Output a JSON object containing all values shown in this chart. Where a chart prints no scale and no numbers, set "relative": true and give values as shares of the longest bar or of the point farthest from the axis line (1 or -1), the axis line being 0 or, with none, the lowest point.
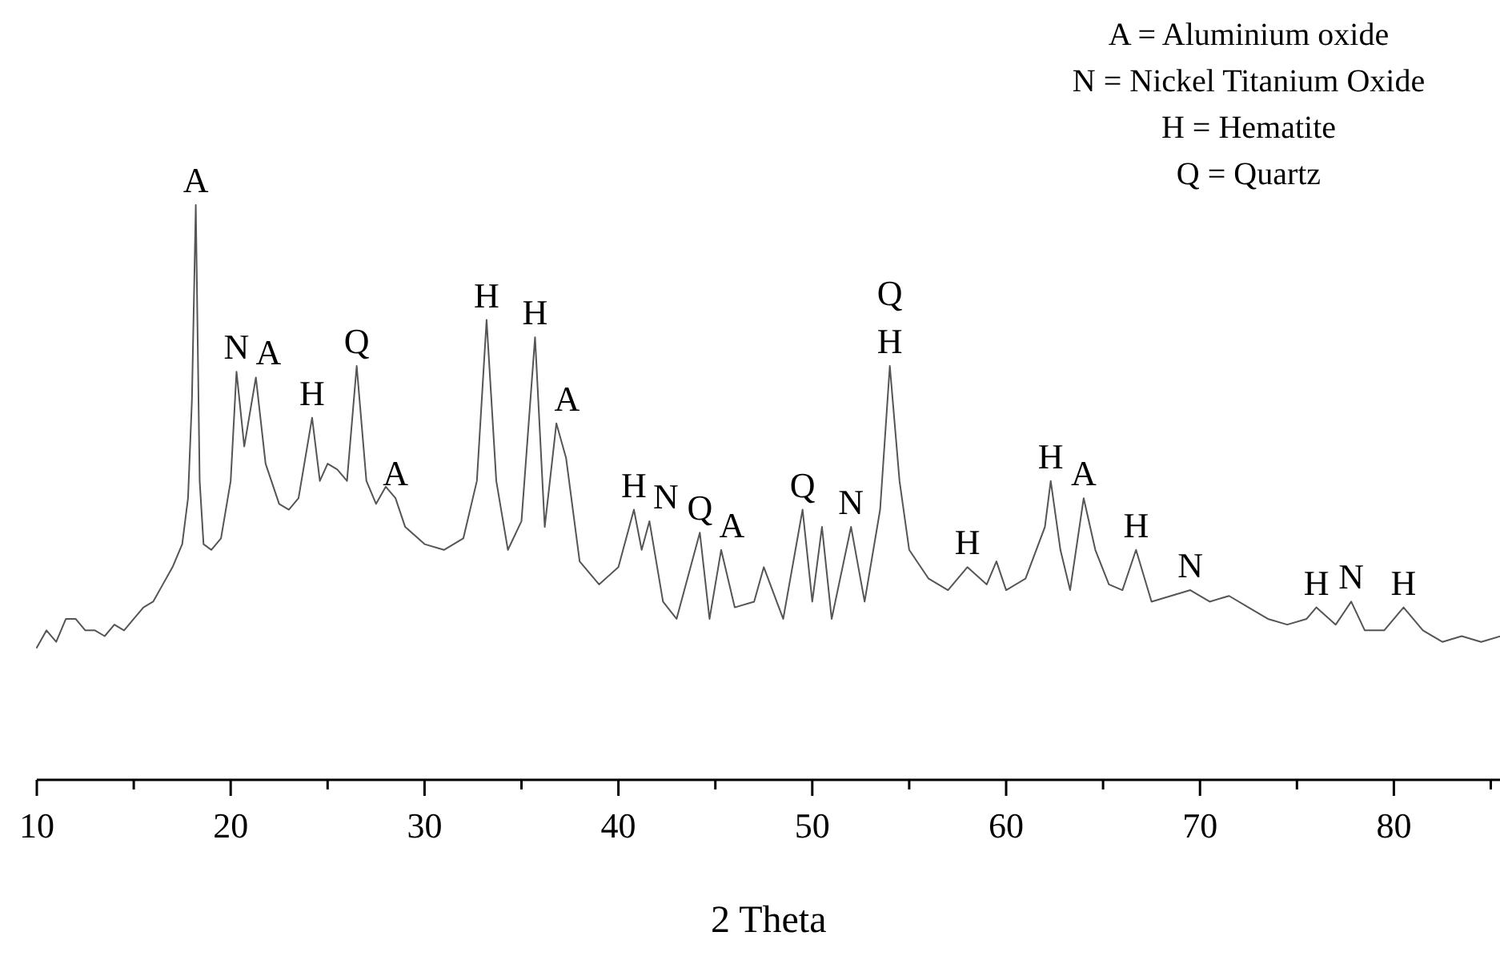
{
  "chart_data": {
    "type": "line",
    "relative": true,
    "xlabel": "2 Theta",
    "xlim": [
      10,
      85.5
    ],
    "xticks": [
      10,
      {
        "value": 15,
        "label": null
      },
      20,
      {
        "value": 25,
        "label": null
      },
      30,
      {
        "value": 35,
        "label": null
      },
      40,
      {
        "value": 45,
        "label": null
      },
      50,
      {
        "value": 55,
        "label": null
      },
      60,
      {
        "value": 65,
        "label": null
      },
      70,
      {
        "value": 75,
        "label": null
      },
      80,
      {
        "value": 85,
        "label": null
      }
    ],
    "x": [
      10,
      10.5,
      11,
      11.5,
      12,
      12.5,
      13,
      13.5,
      14,
      14.5,
      15,
      15.5,
      16,
      16.5,
      17,
      17.5,
      17.8,
      18,
      18.2,
      18.4,
      18.6,
      19,
      19.5,
      20,
      20.3,
      20.7,
      21.3,
      21.8,
      22.5,
      23,
      23.5,
      24.2,
      24.6,
      25,
      25.5,
      26,
      26.5,
      27,
      27.5,
      28,
      28.5,
      29,
      30,
      31,
      32,
      32.7,
      33.2,
      33.7,
      34.3,
      35,
      35.7,
      36.2,
      36.8,
      37.3,
      38,
      39,
      40,
      40.8,
      41.2,
      41.6,
      42.3,
      43,
      44.2,
      44.7,
      45.3,
      46,
      47,
      47.5,
      48.5,
      49.5,
      50,
      50.5,
      51,
      52,
      52.7,
      53.5,
      54,
      54.5,
      55,
      56,
      57,
      58,
      59,
      59.5,
      60,
      61,
      62,
      62.3,
      62.8,
      63.3,
      64,
      64.6,
      65.3,
      66,
      66.7,
      67.5,
      68.5,
      69.5,
      70.5,
      71.5,
      72.5,
      73.5,
      74.5,
      75.5,
      76,
      77,
      77.8,
      78.5,
      79.5,
      80.5,
      81.5,
      82.5,
      83.5,
      84.5,
      85.5
    ],
    "series": [
      {
        "color": "#555555",
        "values": [
          0.23,
          0.26,
          0.24,
          0.28,
          0.28,
          0.26,
          0.26,
          0.25,
          0.27,
          0.26,
          0.28,
          0.3,
          0.31,
          0.34,
          0.37,
          0.41,
          0.49,
          0.66,
          1,
          0.52,
          0.41,
          0.4,
          0.42,
          0.52,
          0.71,
          0.58,
          0.7,
          0.55,
          0.48,
          0.47,
          0.49,
          0.63,
          0.52,
          0.55,
          0.54,
          0.52,
          0.72,
          0.52,
          0.48,
          0.51,
          0.49,
          0.44,
          0.41,
          0.4,
          0.42,
          0.52,
          0.8,
          0.52,
          0.4,
          0.45,
          0.77,
          0.44,
          0.62,
          0.56,
          0.38,
          0.34,
          0.37,
          0.47,
          0.4,
          0.45,
          0.31,
          0.28,
          0.43,
          0.28,
          0.4,
          0.3,
          0.31,
          0.37,
          0.28,
          0.47,
          0.31,
          0.44,
          0.28,
          0.44,
          0.31,
          0.47,
          0.72,
          0.52,
          0.4,
          0.35,
          0.33,
          0.37,
          0.34,
          0.38,
          0.33,
          0.35,
          0.44,
          0.52,
          0.4,
          0.33,
          0.49,
          0.4,
          0.34,
          0.33,
          0.4,
          0.31,
          0.32,
          0.33,
          0.31,
          0.32,
          0.3,
          0.28,
          0.27,
          0.28,
          0.3,
          0.27,
          0.31,
          0.26,
          0.26,
          0.3,
          0.26,
          0.24,
          0.25,
          0.24,
          0.25
        ]
      }
    ],
    "annotations": [
      "A = Aluminium oxide",
      "N = Nickel Titanium Oxide",
      "H = Hematite",
      "Q = Quartz",
      {
        "text": "A",
        "x": 18.2,
        "y": 1
      },
      {
        "text": "N",
        "x": 20.3,
        "y": 0.71
      },
      {
        "text": "A",
        "x": 21.3,
        "y": 0.7
      },
      {
        "text": "H",
        "x": 24.2,
        "y": 0.63
      },
      {
        "text": "Q",
        "x": 26.5,
        "y": 0.72
      },
      {
        "text": "A",
        "x": 28.5,
        "y": 0.49
      },
      {
        "text": "H",
        "x": 33.2,
        "y": 0.8
      },
      {
        "text": "H",
        "x": 35.7,
        "y": 0.77
      },
      {
        "text": "A",
        "x": 36.8,
        "y": 0.62
      },
      {
        "text": "H",
        "x": 40.8,
        "y": 0.47
      },
      {
        "text": "N",
        "x": 41.6,
        "y": 0.45
      },
      {
        "text": "Q",
        "x": 44.2,
        "y": 0.43
      },
      {
        "text": "A",
        "x": 45.3,
        "y": 0.4
      },
      {
        "text": "Q",
        "x": 49.5,
        "y": 0.47
      },
      {
        "text": "N",
        "x": 52,
        "y": 0.44
      },
      {
        "text": "H",
        "x": 54,
        "y": 0.72
      },
      {
        "text": "Q",
        "x": 54,
        "y": 0.72
      },
      {
        "text": "H",
        "x": 58,
        "y": 0.37
      },
      {
        "text": "H",
        "x": 62.3,
        "y": 0.52
      },
      {
        "text": "A",
        "x": 64,
        "y": 0.49
      },
      {
        "text": "H",
        "x": 66.7,
        "y": 0.4
      },
      {
        "text": "N",
        "x": 69.5,
        "y": 0.33
      },
      {
        "text": "H",
        "x": 76,
        "y": 0.3
      },
      {
        "text": "N",
        "x": 77.8,
        "y": 0.31
      },
      {
        "text": "H",
        "x": 80.5,
        "y": 0.3
      }
    ]
  }
}
